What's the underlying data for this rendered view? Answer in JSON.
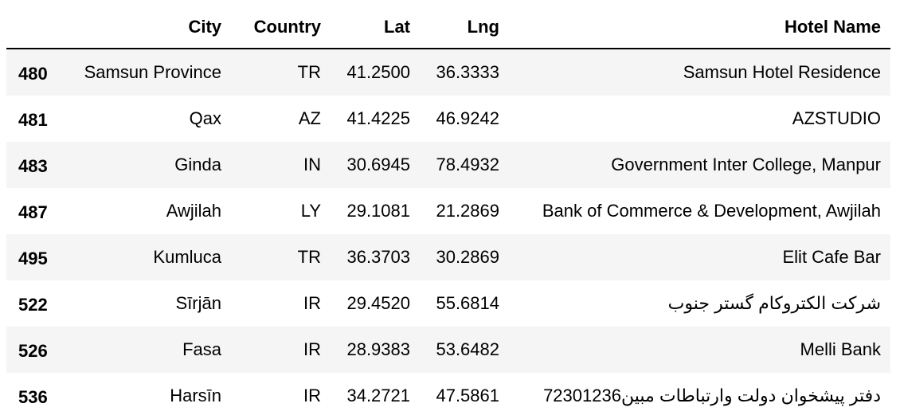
{
  "table": {
    "columns": [
      "City",
      "Country",
      "Lat",
      "Lng",
      "Hotel Name"
    ],
    "rows": [
      {
        "index": "480",
        "city": "Samsun Province",
        "country": "TR",
        "lat": "41.2500",
        "lng": "36.3333",
        "hotel": "Samsun Hotel Residence"
      },
      {
        "index": "481",
        "city": "Qax",
        "country": "AZ",
        "lat": "41.4225",
        "lng": "46.9242",
        "hotel": "AZSTUDIO"
      },
      {
        "index": "483",
        "city": "Ginda",
        "country": "IN",
        "lat": "30.6945",
        "lng": "78.4932",
        "hotel": "Government Inter College, Manpur"
      },
      {
        "index": "487",
        "city": "Awjilah",
        "country": "LY",
        "lat": "29.1081",
        "lng": "21.2869",
        "hotel": "Bank of Commerce & Development, Awjilah"
      },
      {
        "index": "495",
        "city": "Kumluca",
        "country": "TR",
        "lat": "36.3703",
        "lng": "30.2869",
        "hotel": "Elit Cafe Bar"
      },
      {
        "index": "522",
        "city": "Sīrjān",
        "country": "IR",
        "lat": "29.4520",
        "lng": "55.6814",
        "hotel": "شرکت الکتروکام گستر جنوب"
      },
      {
        "index": "526",
        "city": "Fasa",
        "country": "IR",
        "lat": "28.9383",
        "lng": "53.6482",
        "hotel": "Melli Bank"
      },
      {
        "index": "536",
        "city": "Harsīn",
        "country": "IR",
        "lat": "34.2721",
        "lng": "47.5861",
        "hotel": "دفتر پیشخوان دولت وارتباطات مبین72301236"
      }
    ]
  }
}
